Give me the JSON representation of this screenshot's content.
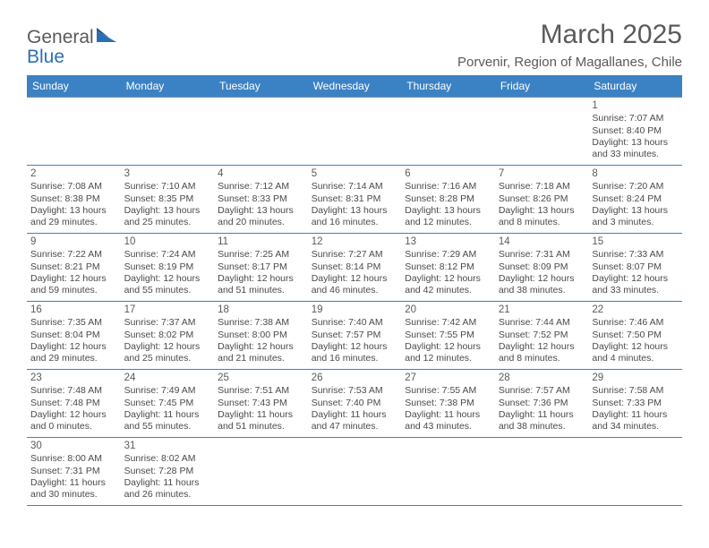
{
  "logo": {
    "text1": "General",
    "text2": "Blue"
  },
  "title": "March 2025",
  "subtitle": "Porvenir, Region of Magallanes, Chile",
  "colors": {
    "header_bg": "#3b82c4",
    "header_text": "#ffffff",
    "row_border_top": "#888888",
    "row_border_bottom": "#3b82c4",
    "body_text": "#4a4a4a",
    "title_text": "#5a5a5a"
  },
  "dayNames": [
    "Sunday",
    "Monday",
    "Tuesday",
    "Wednesday",
    "Thursday",
    "Friday",
    "Saturday"
  ],
  "weeks": [
    [
      null,
      null,
      null,
      null,
      null,
      null,
      {
        "d": "1",
        "sr": "7:07 AM",
        "ss": "8:40 PM",
        "dl1": "13 hours",
        "dl2": "and 33 minutes."
      }
    ],
    [
      {
        "d": "2",
        "sr": "7:08 AM",
        "ss": "8:38 PM",
        "dl1": "13 hours",
        "dl2": "and 29 minutes."
      },
      {
        "d": "3",
        "sr": "7:10 AM",
        "ss": "8:35 PM",
        "dl1": "13 hours",
        "dl2": "and 25 minutes."
      },
      {
        "d": "4",
        "sr": "7:12 AM",
        "ss": "8:33 PM",
        "dl1": "13 hours",
        "dl2": "and 20 minutes."
      },
      {
        "d": "5",
        "sr": "7:14 AM",
        "ss": "8:31 PM",
        "dl1": "13 hours",
        "dl2": "and 16 minutes."
      },
      {
        "d": "6",
        "sr": "7:16 AM",
        "ss": "8:28 PM",
        "dl1": "13 hours",
        "dl2": "and 12 minutes."
      },
      {
        "d": "7",
        "sr": "7:18 AM",
        "ss": "8:26 PM",
        "dl1": "13 hours",
        "dl2": "and 8 minutes."
      },
      {
        "d": "8",
        "sr": "7:20 AM",
        "ss": "8:24 PM",
        "dl1": "13 hours",
        "dl2": "and 3 minutes."
      }
    ],
    [
      {
        "d": "9",
        "sr": "7:22 AM",
        "ss": "8:21 PM",
        "dl1": "12 hours",
        "dl2": "and 59 minutes."
      },
      {
        "d": "10",
        "sr": "7:24 AM",
        "ss": "8:19 PM",
        "dl1": "12 hours",
        "dl2": "and 55 minutes."
      },
      {
        "d": "11",
        "sr": "7:25 AM",
        "ss": "8:17 PM",
        "dl1": "12 hours",
        "dl2": "and 51 minutes."
      },
      {
        "d": "12",
        "sr": "7:27 AM",
        "ss": "8:14 PM",
        "dl1": "12 hours",
        "dl2": "and 46 minutes."
      },
      {
        "d": "13",
        "sr": "7:29 AM",
        "ss": "8:12 PM",
        "dl1": "12 hours",
        "dl2": "and 42 minutes."
      },
      {
        "d": "14",
        "sr": "7:31 AM",
        "ss": "8:09 PM",
        "dl1": "12 hours",
        "dl2": "and 38 minutes."
      },
      {
        "d": "15",
        "sr": "7:33 AM",
        "ss": "8:07 PM",
        "dl1": "12 hours",
        "dl2": "and 33 minutes."
      }
    ],
    [
      {
        "d": "16",
        "sr": "7:35 AM",
        "ss": "8:04 PM",
        "dl1": "12 hours",
        "dl2": "and 29 minutes."
      },
      {
        "d": "17",
        "sr": "7:37 AM",
        "ss": "8:02 PM",
        "dl1": "12 hours",
        "dl2": "and 25 minutes."
      },
      {
        "d": "18",
        "sr": "7:38 AM",
        "ss": "8:00 PM",
        "dl1": "12 hours",
        "dl2": "and 21 minutes."
      },
      {
        "d": "19",
        "sr": "7:40 AM",
        "ss": "7:57 PM",
        "dl1": "12 hours",
        "dl2": "and 16 minutes."
      },
      {
        "d": "20",
        "sr": "7:42 AM",
        "ss": "7:55 PM",
        "dl1": "12 hours",
        "dl2": "and 12 minutes."
      },
      {
        "d": "21",
        "sr": "7:44 AM",
        "ss": "7:52 PM",
        "dl1": "12 hours",
        "dl2": "and 8 minutes."
      },
      {
        "d": "22",
        "sr": "7:46 AM",
        "ss": "7:50 PM",
        "dl1": "12 hours",
        "dl2": "and 4 minutes."
      }
    ],
    [
      {
        "d": "23",
        "sr": "7:48 AM",
        "ss": "7:48 PM",
        "dl1": "12 hours",
        "dl2": "and 0 minutes."
      },
      {
        "d": "24",
        "sr": "7:49 AM",
        "ss": "7:45 PM",
        "dl1": "11 hours",
        "dl2": "and 55 minutes."
      },
      {
        "d": "25",
        "sr": "7:51 AM",
        "ss": "7:43 PM",
        "dl1": "11 hours",
        "dl2": "and 51 minutes."
      },
      {
        "d": "26",
        "sr": "7:53 AM",
        "ss": "7:40 PM",
        "dl1": "11 hours",
        "dl2": "and 47 minutes."
      },
      {
        "d": "27",
        "sr": "7:55 AM",
        "ss": "7:38 PM",
        "dl1": "11 hours",
        "dl2": "and 43 minutes."
      },
      {
        "d": "28",
        "sr": "7:57 AM",
        "ss": "7:36 PM",
        "dl1": "11 hours",
        "dl2": "and 38 minutes."
      },
      {
        "d": "29",
        "sr": "7:58 AM",
        "ss": "7:33 PM",
        "dl1": "11 hours",
        "dl2": "and 34 minutes."
      }
    ],
    [
      {
        "d": "30",
        "sr": "8:00 AM",
        "ss": "7:31 PM",
        "dl1": "11 hours",
        "dl2": "and 30 minutes."
      },
      {
        "d": "31",
        "sr": "8:02 AM",
        "ss": "7:28 PM",
        "dl1": "11 hours",
        "dl2": "and 26 minutes."
      },
      null,
      null,
      null,
      null,
      null
    ]
  ],
  "labels": {
    "sunrise": "Sunrise: ",
    "sunset": "Sunset: ",
    "daylight": "Daylight: "
  }
}
